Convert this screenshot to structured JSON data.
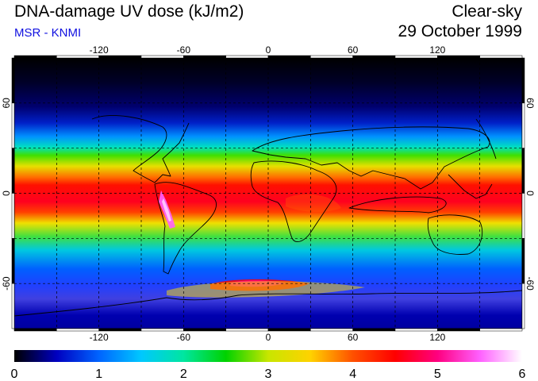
{
  "header": {
    "title": "DNA-damage UV dose (kJ/m2)",
    "credit": "MSR - KNMI",
    "sky_condition": "Clear-sky",
    "date": "29 October 1999"
  },
  "map": {
    "projection": "equirectangular",
    "lon_range": [
      -180,
      180
    ],
    "lat_range": [
      -90,
      90
    ],
    "lon_ticks": [
      "-120",
      "-60",
      "0",
      "60",
      "120"
    ],
    "lat_ticks": [
      "60",
      "0",
      "-60"
    ],
    "lon_tick_values": [
      -120,
      -60,
      0,
      60,
      120
    ],
    "lat_tick_values": [
      60,
      0,
      -60
    ],
    "grid": "dashed 30-degree graticule",
    "coastlines": true
  },
  "colorbar": {
    "min": 0,
    "max": 6,
    "tick_labels": [
      "0",
      "1",
      "2",
      "3",
      "4",
      "5",
      "6"
    ],
    "colors": [
      "#000000",
      "#0000c0",
      "#0064ff",
      "#00c8ff",
      "#00e6a0",
      "#00d200",
      "#c8e600",
      "#ffd200",
      "#ff5000",
      "#ff0000",
      "#ff0080",
      "#ff60ff",
      "#ffffff"
    ]
  },
  "field_summary": {
    "max_value_approx": 6,
    "max_location": "Andes, South America",
    "high_band": "tropics and southern subtropics",
    "low_band": "high northern latitudes"
  }
}
